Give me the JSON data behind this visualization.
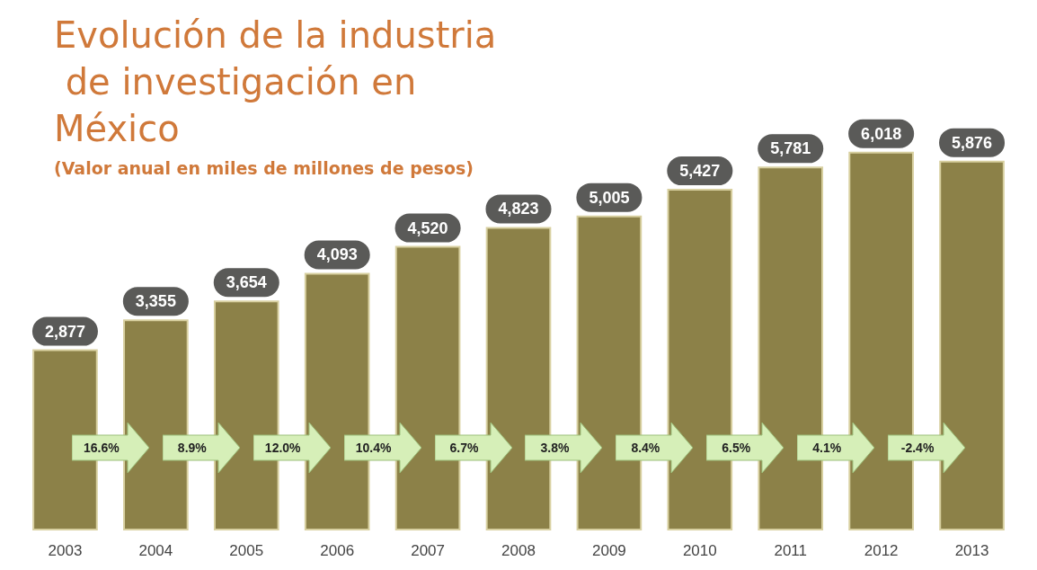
{
  "chart_data": {
    "type": "bar",
    "title": "Evolución de la industria de investigación en México",
    "subtitle": "(Valor anual en miles de millones de pesos)",
    "categories": [
      "2003",
      "2004",
      "2005",
      "2006",
      "2007",
      "2008",
      "2009",
      "2010",
      "2011",
      "2012",
      "2013"
    ],
    "values": [
      2877,
      3355,
      3654,
      4093,
      4520,
      4823,
      5005,
      5427,
      5781,
      6018,
      5876
    ],
    "value_labels": [
      "2,877",
      "3,355",
      "3,654",
      "4,093",
      "4,520",
      "4,823",
      "5,005",
      "5,427",
      "5,781",
      "6,018",
      "5,876"
    ],
    "color": "#8c8148",
    "annotations": [
      "16.6%",
      "8.9%",
      "12.0%",
      "10.4%",
      "6.7%",
      "3.8%",
      "8.4%",
      "6.5%",
      "4.1%",
      "-2.4%"
    ],
    "grid": false
  }
}
